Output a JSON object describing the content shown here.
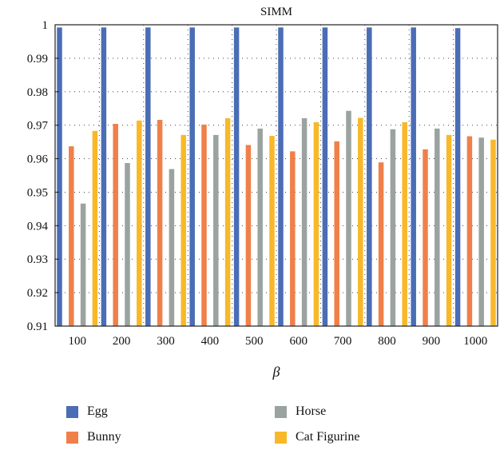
{
  "chart_data": {
    "type": "bar",
    "title": "SIMM",
    "xlabel": "β",
    "ylabel": "",
    "ylim": [
      0.91,
      1.0
    ],
    "yticks": [
      "0.91",
      "0.92",
      "0.93",
      "0.94",
      "0.95",
      "0.96",
      "0.97",
      "0.98",
      "0.99",
      "1"
    ],
    "categories": [
      "100",
      "200",
      "300",
      "400",
      "500",
      "600",
      "700",
      "800",
      "900",
      "1000"
    ],
    "grid": "dotted",
    "legend_position": "bottom",
    "series": [
      {
        "name": "Egg",
        "color": "#4a6db5",
        "values": [
          0.9992,
          0.9992,
          0.9992,
          0.9992,
          0.9992,
          0.9992,
          0.9992,
          0.9992,
          0.9992,
          0.999
        ]
      },
      {
        "name": "Bunny",
        "color": "#f0804a",
        "values": [
          0.9637,
          0.9704,
          0.9716,
          0.9702,
          0.9641,
          0.9622,
          0.9652,
          0.9589,
          0.9628,
          0.9667
        ]
      },
      {
        "name": "Horse",
        "color": "#9aa3a0",
        "values": [
          0.9466,
          0.9587,
          0.9569,
          0.9671,
          0.969,
          0.9721,
          0.9743,
          0.9688,
          0.969,
          0.9663
        ]
      },
      {
        "name": "Cat Figurine",
        "color": "#f8b829",
        "values": [
          0.9683,
          0.9714,
          0.9671,
          0.9721,
          0.9668,
          0.9709,
          0.9722,
          0.9709,
          0.9671,
          0.9657
        ]
      }
    ]
  }
}
